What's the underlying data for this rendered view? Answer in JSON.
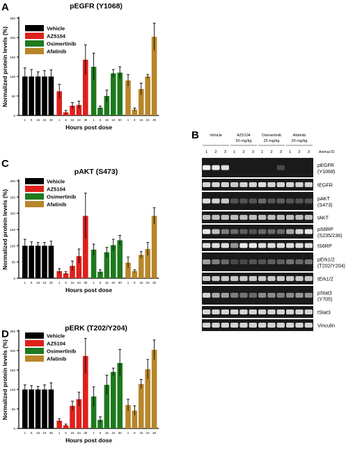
{
  "panels": {
    "A": "A",
    "B": "B",
    "C": "C",
    "D": "D"
  },
  "colors": {
    "vehicle": "#000000",
    "az5104": "#e0201b",
    "osimertinib": "#1e7a1e",
    "afatinib": "#b8862a"
  },
  "chart_data": [
    {
      "type": "bar",
      "title": "pEGFR (Y1068)",
      "xlabel": "Hours post dose",
      "ylabel": "Normalized protein levels (%)",
      "ylim": [
        0,
        250
      ],
      "yticks": [
        0,
        50,
        100,
        150,
        200,
        250
      ],
      "legend": [
        "Vehicle",
        "AZ5104",
        "Osimertinib",
        "Afatinib"
      ],
      "legend_position": "top-left",
      "categories": [
        "1",
        "6",
        "16",
        "24",
        "30"
      ],
      "series": [
        {
          "name": "Vehicle",
          "values": [
            100,
            100,
            100,
            100,
            100
          ],
          "errors": [
            22,
            18,
            12,
            15,
            17
          ]
        },
        {
          "name": "AZ5104",
          "values": [
            62,
            8,
            25,
            27,
            143
          ],
          "errors": [
            18,
            5,
            8,
            10,
            38
          ]
        },
        {
          "name": "Osimertinib",
          "values": [
            125,
            20,
            50,
            108,
            110
          ],
          "errors": [
            35,
            4,
            15,
            10,
            15
          ]
        },
        {
          "name": "Afatinib",
          "values": [
            90,
            15,
            68,
            100,
            202
          ],
          "errors": [
            15,
            4,
            15,
            5,
            35
          ]
        }
      ]
    },
    {
      "type": "bar",
      "title": "pAKT (S473)",
      "xlabel": "Hours post dose",
      "ylabel": "Normalized protein levels (%)",
      "ylim": [
        0,
        300
      ],
      "yticks": [
        0,
        50,
        100,
        150,
        200,
        250,
        300
      ],
      "legend": [
        "Vehicle",
        "AZ5104",
        "Osimertinib",
        "Afatinib"
      ],
      "legend_position": "top-left",
      "categories": [
        "1",
        "6",
        "16",
        "24",
        "30"
      ],
      "series": [
        {
          "name": "Vehicle",
          "values": [
            100,
            100,
            100,
            100,
            100
          ],
          "errors": [
            20,
            12,
            10,
            10,
            14
          ]
        },
        {
          "name": "AZ5104",
          "values": [
            22,
            15,
            38,
            68,
            192
          ],
          "errors": [
            7,
            5,
            15,
            22,
            70
          ]
        },
        {
          "name": "Osimertinib",
          "values": [
            88,
            20,
            80,
            102,
            117
          ],
          "errors": [
            17,
            6,
            15,
            18,
            15
          ]
        },
        {
          "name": "Afatinib",
          "values": [
            48,
            22,
            72,
            90,
            192
          ],
          "errors": [
            17,
            4,
            10,
            20,
            25
          ]
        }
      ]
    },
    {
      "type": "bar",
      "title": "pERK (T202/Y204)",
      "xlabel": "Hours post dose",
      "ylabel": "Normalized protein levels (%)",
      "ylim": [
        0,
        250
      ],
      "yticks": [
        0,
        50,
        100,
        150,
        200,
        250
      ],
      "legend": [
        "Vehicle",
        "AZ5104",
        "Osimertinib",
        "Afatinib"
      ],
      "legend_position": "top-left",
      "categories": [
        "1",
        "6",
        "16",
        "24",
        "30"
      ],
      "series": [
        {
          "name": "Vehicle",
          "values": [
            100,
            100,
            100,
            100,
            100
          ],
          "errors": [
            12,
            10,
            8,
            12,
            17
          ]
        },
        {
          "name": "AZ5104",
          "values": [
            20,
            8,
            58,
            75,
            186
          ],
          "errors": [
            5,
            3,
            12,
            18,
            45
          ]
        },
        {
          "name": "Osimertinib",
          "values": [
            82,
            22,
            112,
            145,
            168
          ],
          "errors": [
            25,
            8,
            25,
            10,
            35
          ]
        },
        {
          "name": "Afatinib",
          "values": [
            60,
            46,
            114,
            152,
            202
          ],
          "errors": [
            15,
            12,
            12,
            25,
            25
          ]
        }
      ]
    }
  ],
  "blot": {
    "groups": [
      {
        "name": "Vehicle",
        "dose": ""
      },
      {
        "name": "AZ5104",
        "dose": "50 mg/kg"
      },
      {
        "name": "Osimertinib",
        "dose": "25 mg/kg"
      },
      {
        "name": "Afatinib",
        "dose": "20 mg/kg"
      }
    ],
    "lane_numbers": [
      "1",
      "2",
      "3"
    ],
    "animal_id_label": "Animal ID",
    "rows": [
      {
        "label": "pEGFR (Y1068)",
        "line1": "pEGFR",
        "line2": "(Y1068)",
        "intensity": [
          0.95,
          0.9,
          0.85,
          0,
          0,
          0,
          0,
          0,
          0.15,
          0,
          0,
          0
        ]
      },
      {
        "label": "tEGFR",
        "line1": "tEGFR",
        "line2": "",
        "intensity": [
          0.8,
          0.8,
          0.8,
          0.75,
          0.8,
          0.8,
          0.85,
          0.8,
          0.8,
          0.8,
          0.8,
          0.8
        ]
      },
      {
        "label": "pAKT (S473)",
        "line1": "pAKT",
        "line2": "(S473)",
        "intensity": [
          0.85,
          0.8,
          0.75,
          0.2,
          0.2,
          0.2,
          0.3,
          0.2,
          0.25,
          0.2,
          0.2,
          0.2
        ]
      },
      {
        "label": "tAKT",
        "line1": "tAKT",
        "line2": "",
        "intensity": [
          0.7,
          0.7,
          0.7,
          0.7,
          0.7,
          0.7,
          0.7,
          0.7,
          0.7,
          0.7,
          0.7,
          0.7
        ]
      },
      {
        "label": "pS6RP (S235/236)",
        "line1": "pS6RP",
        "line2": "(S235/236)",
        "intensity": [
          0.9,
          0.7,
          0.4,
          0.3,
          0.25,
          0.2,
          0.3,
          0.3,
          0.3,
          0.6,
          0.8,
          0.9
        ]
      },
      {
        "label": "tS6RP",
        "line1": "tS6RP",
        "line2": "",
        "intensity": [
          0.85,
          0.85,
          0.85,
          0.5,
          0.9,
          0.9,
          0.85,
          0.85,
          0.85,
          0.85,
          0.85,
          0.85
        ]
      },
      {
        "label": "pErk1/2 (T202/Y204)",
        "line1": "pErk1/2",
        "line2": "(T202/Y204)",
        "intensity": [
          0.55,
          0.4,
          0.3,
          0.15,
          0.15,
          0.2,
          0.2,
          0.25,
          0.25,
          0.35,
          0.3,
          0.35
        ]
      },
      {
        "label": "tErk1/2",
        "line1": "tErk1/2",
        "line2": "",
        "intensity": [
          0.75,
          0.75,
          0.75,
          0.75,
          0.75,
          0.75,
          0.75,
          0.75,
          0.75,
          0.75,
          0.75,
          0.75
        ]
      },
      {
        "label": "pStat3 (Y705)",
        "line1": "pStat3",
        "line2": "(Y705)",
        "intensity": [
          0.8,
          0.6,
          0.55,
          0.4,
          0.35,
          0.3,
          0.45,
          0.45,
          0.4,
          0.45,
          0.5,
          0.5
        ]
      },
      {
        "label": "tStat3",
        "line1": "tStat3",
        "line2": "",
        "intensity": [
          0.8,
          0.8,
          0.8,
          0.8,
          0.8,
          0.8,
          0.8,
          0.8,
          0.8,
          0.8,
          0.8,
          0.8
        ]
      },
      {
        "label": "Vinculin",
        "line1": "Vinculin",
        "line2": "",
        "intensity": [
          0.8,
          0.8,
          0.8,
          0.8,
          0.8,
          0.8,
          0.8,
          0.8,
          0.8,
          0.8,
          0.8,
          0.8
        ]
      }
    ]
  }
}
